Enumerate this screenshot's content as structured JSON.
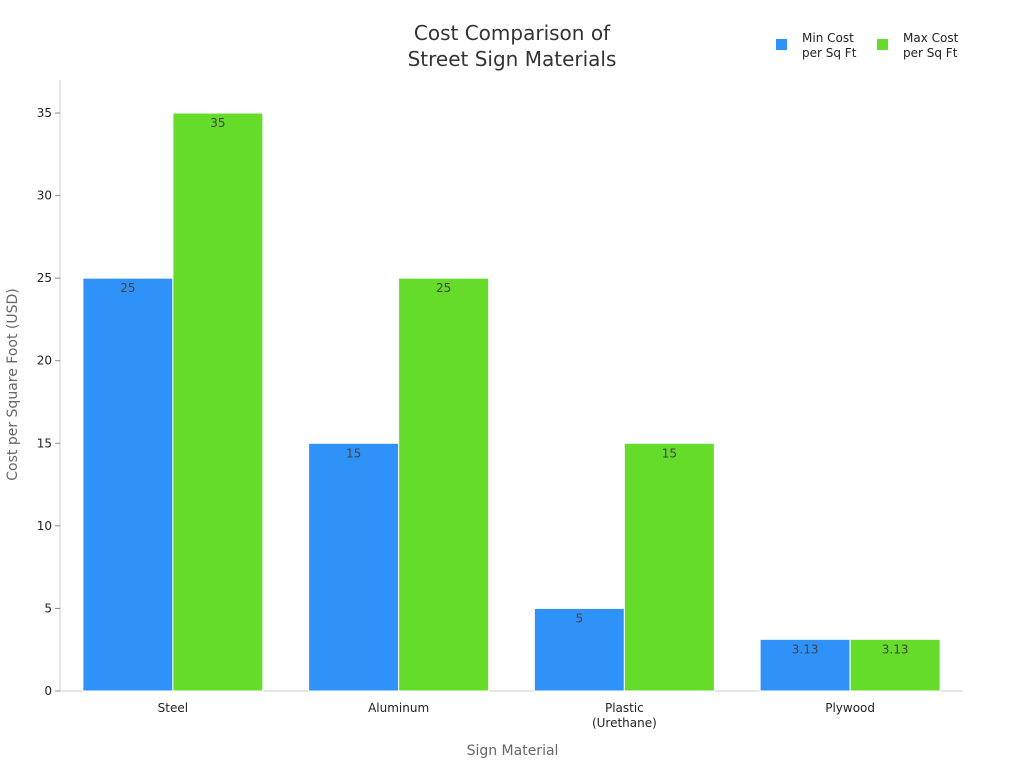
{
  "chart_data": {
    "type": "bar",
    "title": [
      "Cost Comparison of",
      "Street Sign Materials"
    ],
    "xlabel": "Sign Material",
    "ylabel": "Cost per Square Foot (USD)",
    "categories": [
      [
        "Steel"
      ],
      [
        "Aluminum"
      ],
      [
        "Plastic",
        "(Urethane)"
      ],
      [
        "Plywood"
      ]
    ],
    "series": [
      {
        "name": [
          "Min Cost",
          "per Sq Ft"
        ],
        "color": "#2f92f8",
        "values": [
          25,
          15,
          5,
          3.13
        ]
      },
      {
        "name": [
          "Max Cost",
          "per Sq Ft"
        ],
        "color": "#66dc2a",
        "values": [
          35,
          25,
          15,
          3.13
        ]
      }
    ],
    "ylim": [
      0,
      37
    ],
    "yticks": [
      0,
      5,
      10,
      15,
      20,
      25,
      30,
      35
    ],
    "grid": false,
    "legend": "top-right"
  }
}
